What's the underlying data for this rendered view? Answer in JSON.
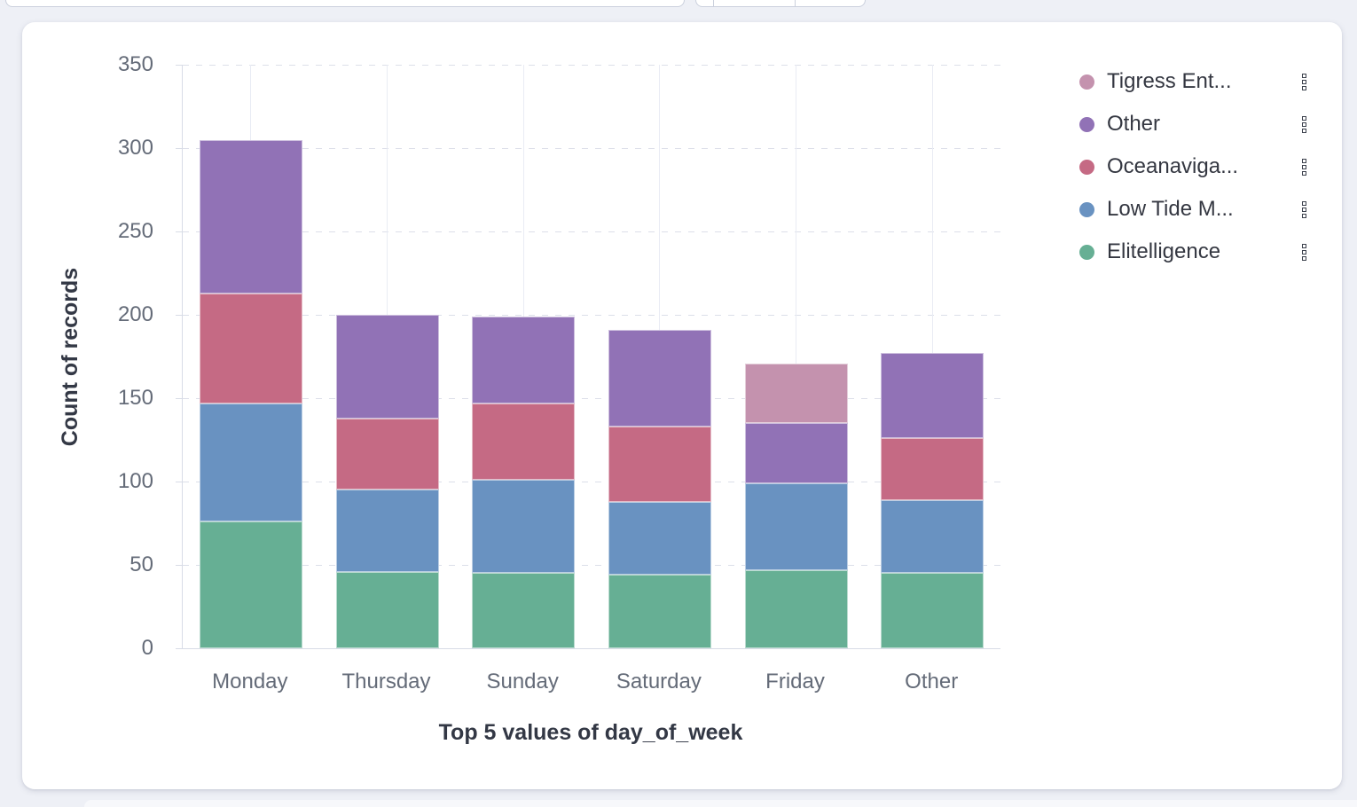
{
  "colors": {
    "page_bg": "#eef0f6",
    "card_bg": "#ffffff",
    "axis_text": "#646b78",
    "title_text": "#333845",
    "grid_dash": "#dcdfe9",
    "grid_vertical": "#e9ecf4",
    "axis_line": "#d8dce6",
    "fragment_border": "#cbd0dd",
    "legend_text": "#343741"
  },
  "chart_data": {
    "type": "bar",
    "stacked": true,
    "orientation": "vertical",
    "categories": [
      "Monday",
      "Thursday",
      "Sunday",
      "Saturday",
      "Friday",
      "Other"
    ],
    "series": [
      {
        "name": "Elitelligence",
        "color": "#66AF94",
        "values": [
          76,
          46,
          45,
          44,
          47,
          45
        ]
      },
      {
        "name": "Low Tide M...",
        "color": "#6992C1",
        "values": [
          71,
          49,
          56,
          44,
          52,
          44
        ]
      },
      {
        "name": "Oceanaviga...",
        "color": "#C56A84",
        "values": [
          66,
          43,
          46,
          45,
          0,
          37
        ]
      },
      {
        "name": "Other",
        "color": "#9172B6",
        "values": [
          92,
          62,
          52,
          58,
          36,
          51
        ]
      },
      {
        "name": "Tigress Ent...",
        "color": "#C492AE",
        "values": [
          0,
          0,
          0,
          0,
          36,
          0
        ]
      }
    ],
    "totals": [
      305,
      200,
      199,
      191,
      171,
      177
    ],
    "title": "",
    "xlabel": "Top 5 values of day_of_week",
    "ylabel": "Count of records",
    "ylim": [
      0,
      350
    ],
    "yticks": [
      0,
      50,
      100,
      150,
      200,
      250,
      300,
      350
    ],
    "grid": "horizontal-dashed and vertical-solid",
    "legend_position": "right",
    "legend_order_top_to_bottom": [
      "Tigress Ent...",
      "Other",
      "Oceanaviga...",
      "Low Tide M...",
      "Elitelligence"
    ]
  },
  "legend": {
    "action_icon": "boxes-vertical-icon",
    "dot_icon": "series-color-dot"
  }
}
